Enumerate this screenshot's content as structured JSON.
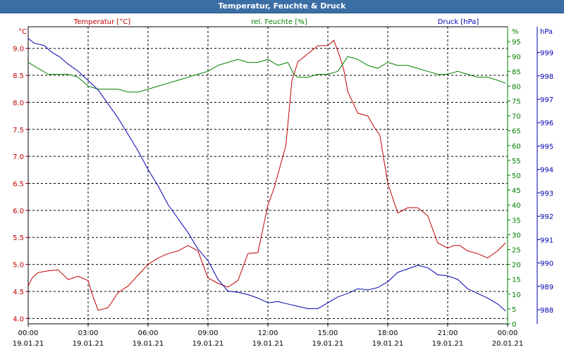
{
  "chart_data": {
    "type": "line",
    "title": "Temperatur, Feuchte & Druck",
    "grid": true,
    "x_ticks": [
      {
        "time": "00:00",
        "date": "19.01.21"
      },
      {
        "time": "03:00",
        "date": "19.01.21"
      },
      {
        "time": "06:00",
        "date": "19.01.21"
      },
      {
        "time": "09:00",
        "date": "19.01.21"
      },
      {
        "time": "12:00",
        "date": "19.01.21"
      },
      {
        "time": "15:00",
        "date": "19.01.21"
      },
      {
        "time": "18:00",
        "date": "19.01.21"
      },
      {
        "time": "21:00",
        "date": "19.01.21"
      },
      {
        "time": "00:00",
        "date": "20.01.21"
      }
    ],
    "axes": {
      "temperature": {
        "label": "Temperatur [°C]",
        "unit": "°C",
        "range": [
          3.9,
          9.4
        ],
        "ticks": [
          4.0,
          4.5,
          5.0,
          5.5,
          6.0,
          6.5,
          7.0,
          7.5,
          8.0,
          8.5,
          9.0
        ],
        "color": "#c00000"
      },
      "humidity": {
        "label": "rel. Feuchte [%]",
        "unit": "%",
        "range": [
          0,
          100
        ],
        "ticks": [
          0,
          5,
          10,
          15,
          20,
          25,
          30,
          35,
          40,
          45,
          50,
          55,
          60,
          65,
          70,
          75,
          80,
          85,
          90,
          95
        ],
        "color": "#008000"
      },
      "pressure": {
        "label": "Druck [hPa]",
        "unit": "hPa",
        "range": [
          987.4,
          1000.1
        ],
        "ticks": [
          988,
          989,
          990,
          991,
          992,
          993,
          994,
          995,
          996,
          997,
          998,
          999
        ],
        "color": "#0000b0"
      }
    },
    "series": [
      {
        "name": "Temperatur [°C]",
        "axis": "temperature",
        "color": "#c00000",
        "x": [
          0,
          0.2,
          0.5,
          1,
          1.5,
          2,
          2.5,
          3,
          3.2,
          3.5,
          4,
          4.5,
          5,
          5.5,
          6,
          6.5,
          7,
          7.5,
          8,
          8.5,
          9,
          9.5,
          10,
          10.5,
          11,
          11.5,
          12,
          12.3,
          12.6,
          12.9,
          13.2,
          13.5,
          14,
          14.5,
          15,
          15.3,
          15.6,
          15.8,
          16,
          16.5,
          17,
          17.3,
          17.6,
          18,
          18.5,
          19,
          19.5,
          20,
          20.5,
          21,
          21.3,
          21.6,
          22,
          22.5,
          23,
          23.5,
          23.9
        ],
        "values": [
          4.6,
          4.75,
          4.85,
          4.88,
          4.9,
          4.72,
          4.78,
          4.7,
          4.45,
          4.15,
          4.2,
          4.48,
          4.6,
          4.8,
          5.0,
          5.12,
          5.2,
          5.25,
          5.35,
          5.25,
          4.75,
          4.65,
          4.58,
          4.7,
          5.2,
          5.22,
          6.1,
          6.4,
          6.8,
          7.2,
          8.4,
          8.75,
          8.9,
          9.05,
          9.05,
          9.15,
          8.85,
          8.6,
          8.2,
          7.8,
          7.75,
          7.55,
          7.4,
          6.5,
          5.95,
          6.05,
          6.05,
          5.9,
          5.4,
          5.3,
          5.35,
          5.35,
          5.25,
          5.2,
          5.12,
          5.25,
          5.4
        ]
      },
      {
        "name": "rel. Feuchte [%]",
        "axis": "humidity",
        "color": "#008000",
        "x": [
          0,
          0.5,
          1,
          1.5,
          2,
          2.5,
          3,
          3.5,
          4,
          4.5,
          5,
          5.5,
          6,
          6.5,
          7,
          7.5,
          8,
          8.5,
          9,
          9.5,
          10,
          10.5,
          11,
          11.5,
          12,
          12.5,
          13,
          13.3,
          13.5,
          14,
          14.5,
          15,
          15.5,
          16,
          16.5,
          17,
          17.5,
          18,
          18.5,
          19,
          19.5,
          20,
          20.5,
          21,
          21.5,
          22,
          22.5,
          23,
          23.5,
          23.9
        ],
        "values": [
          88,
          86,
          84,
          84,
          84,
          83,
          80,
          79,
          79,
          79,
          78,
          78,
          79,
          80,
          81,
          82,
          83,
          84,
          85,
          87,
          88,
          89,
          88,
          88,
          89,
          87,
          88,
          84,
          83,
          83,
          84,
          84,
          85,
          90,
          89,
          87,
          86,
          88,
          87,
          87,
          86,
          85,
          84,
          84,
          85,
          84,
          83,
          83,
          82,
          81
        ]
      },
      {
        "name": "Druck [hPa]",
        "axis": "pressure",
        "color": "#0000b0",
        "x": [
          0,
          0.3,
          0.8,
          1.2,
          1.6,
          2,
          2.5,
          3,
          3.5,
          4,
          4.5,
          5,
          5.5,
          6,
          6.5,
          7,
          7.5,
          8,
          8.5,
          9,
          9.5,
          10,
          10.5,
          11,
          11.5,
          12,
          12.5,
          13,
          13.5,
          14,
          14.5,
          15,
          15.5,
          16,
          16.5,
          17,
          17.5,
          18,
          18.5,
          19,
          19.5,
          20,
          20.5,
          21,
          21.5,
          22,
          22.5,
          23,
          23.5,
          23.9
        ],
        "values": [
          999.6,
          999.4,
          999.3,
          999.0,
          998.8,
          998.5,
          998.2,
          997.8,
          997.4,
          996.8,
          996.2,
          995.5,
          994.8,
          994.0,
          993.3,
          992.5,
          991.9,
          991.3,
          990.6,
          990.1,
          989.3,
          988.8,
          988.75,
          988.65,
          988.5,
          988.3,
          988.35,
          988.25,
          988.15,
          988.05,
          988.05,
          988.3,
          988.55,
          988.7,
          988.9,
          988.85,
          988.95,
          989.2,
          989.6,
          989.75,
          989.9,
          989.8,
          989.5,
          989.45,
          989.3,
          988.9,
          988.7,
          988.5,
          988.25,
          987.95
        ]
      }
    ]
  }
}
